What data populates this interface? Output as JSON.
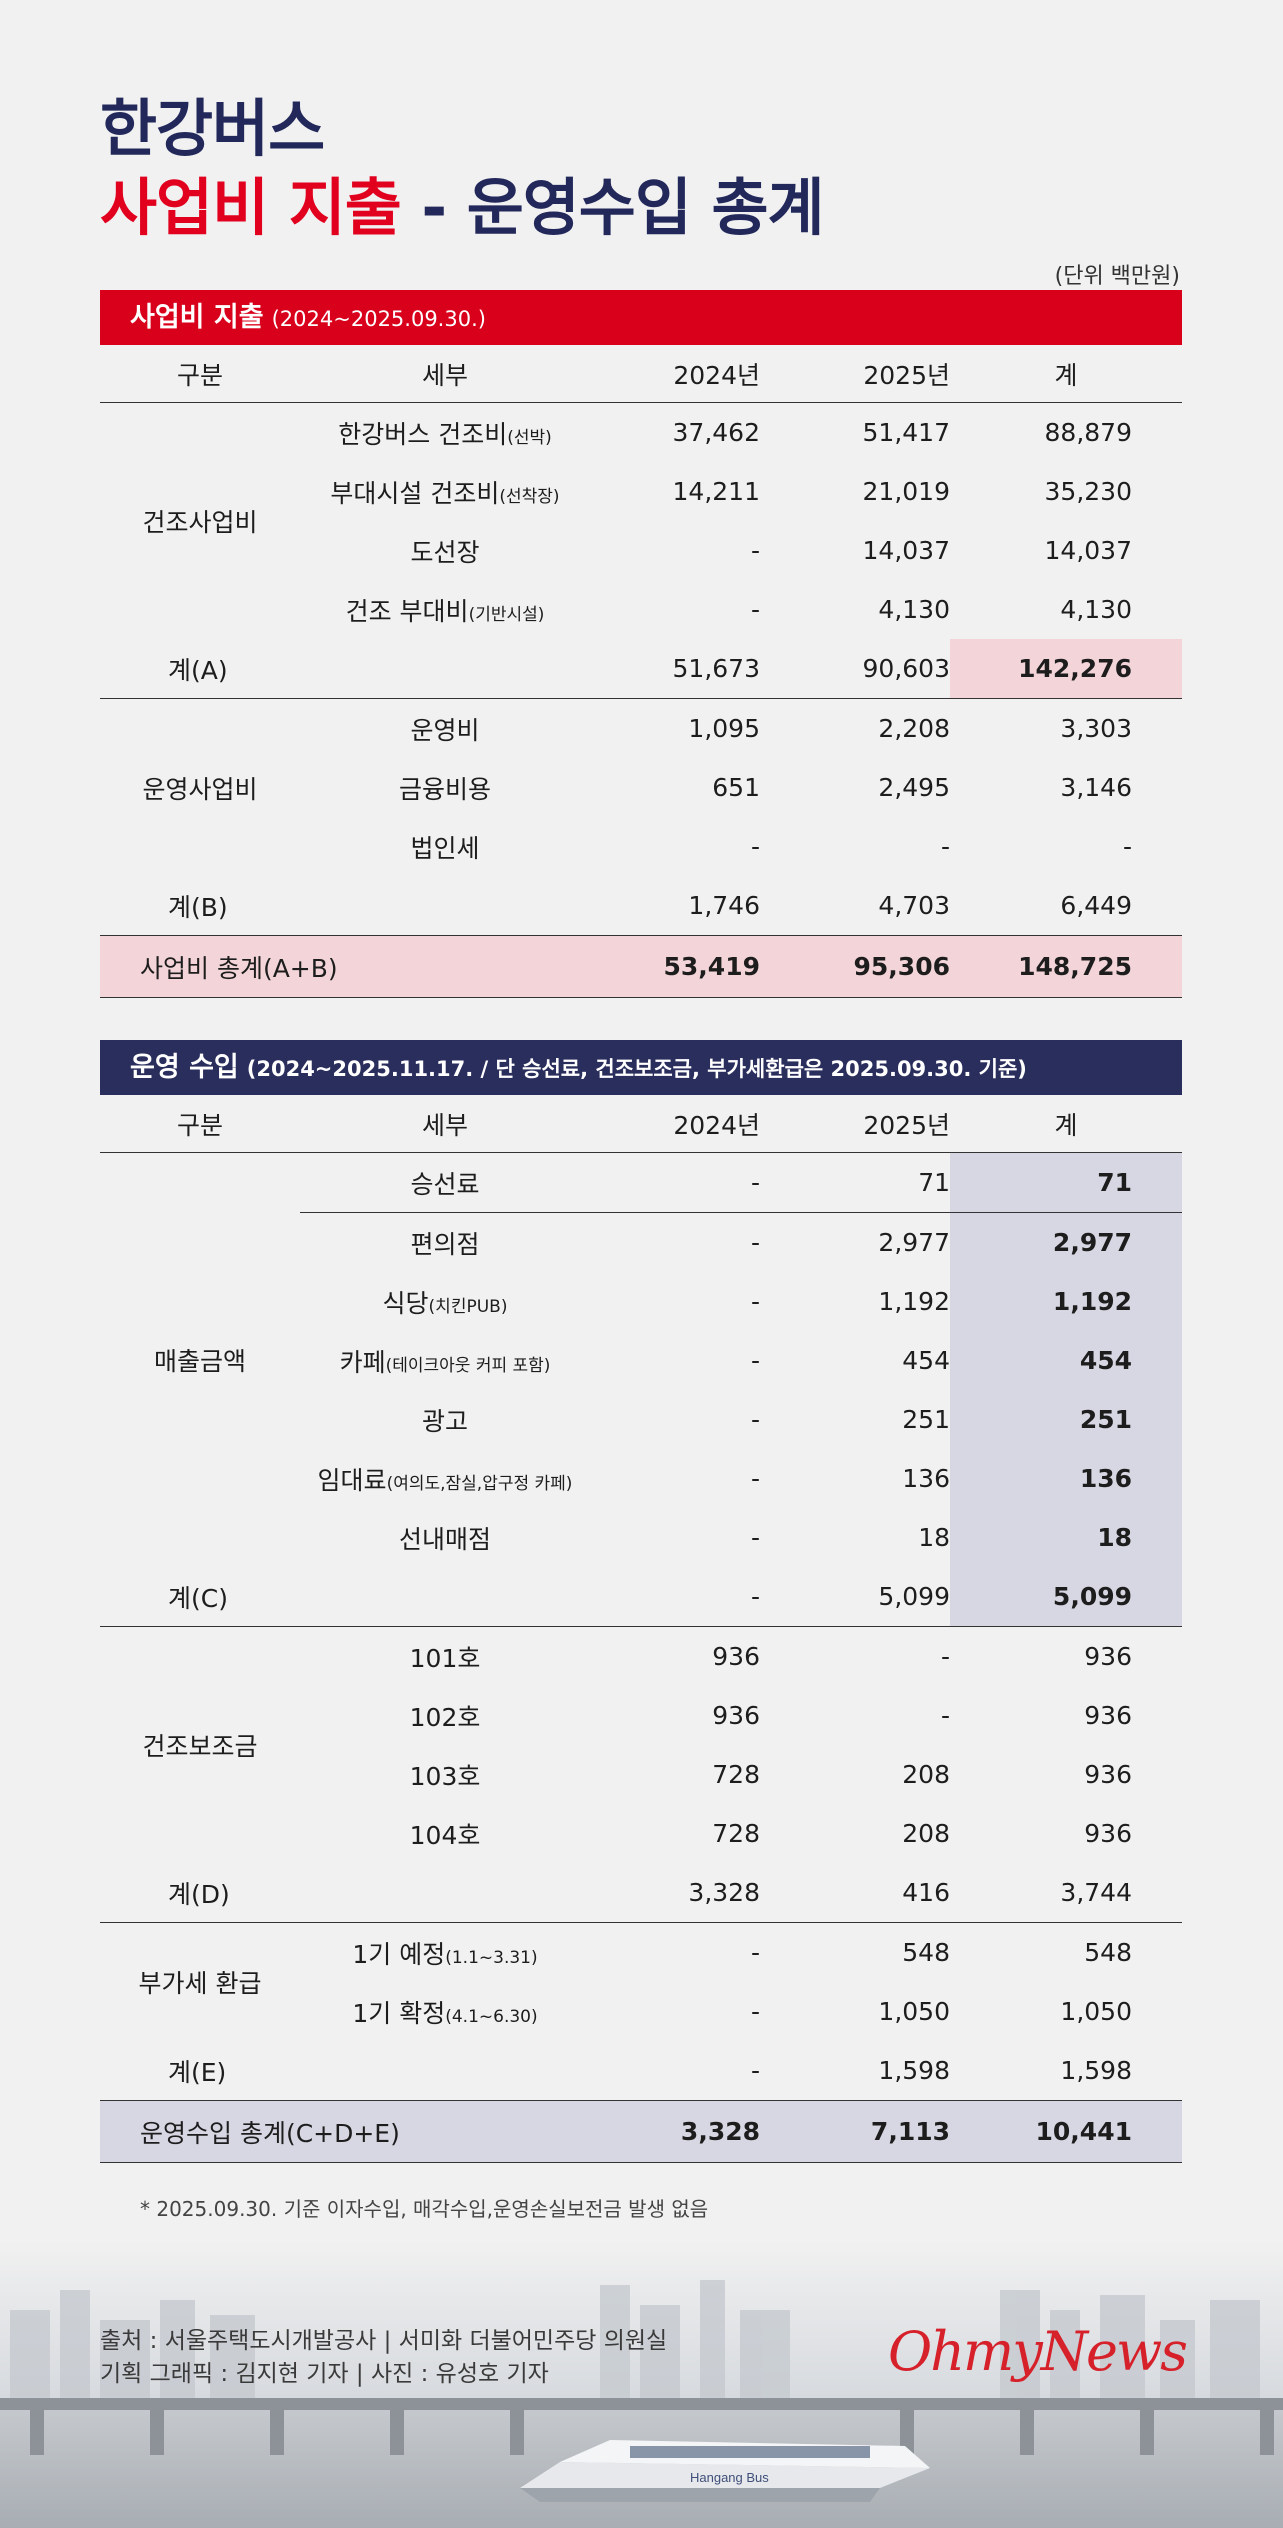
{
  "title": {
    "line1": "한강버스",
    "line2_red": "사업비 지출",
    "line2_dash": " - ",
    "line2_navy": "운영수입 총계"
  },
  "unit": "(단위 백만원)",
  "columns": {
    "cat": "구분",
    "det": "세부",
    "y1": "2024년",
    "y2": "2025년",
    "total": "계"
  },
  "expense": {
    "bar_title": "사업비 지출",
    "bar_period": "(2024~2025.09.30.)",
    "construction": {
      "label": "건조사업비",
      "rows": [
        {
          "name": "한강버스 건조비",
          "note": "(선박)",
          "y1": "37,462",
          "y2": "51,417",
          "total": "88,879"
        },
        {
          "name": "부대시설 건조비",
          "note": "(선착장)",
          "y1": "14,211",
          "y2": "21,019",
          "total": "35,230"
        },
        {
          "name": "도선장",
          "note": "",
          "y1": "-",
          "y2": "14,037",
          "total": "14,037"
        },
        {
          "name": "건조 부대비",
          "note": "(기반시설)",
          "y1": "-",
          "y2": "4,130",
          "total": "4,130"
        }
      ],
      "sum": {
        "label": "계(A)",
        "y1": "51,673",
        "y2": "90,603",
        "total": "142,276"
      }
    },
    "operation": {
      "label": "운영사업비",
      "rows": [
        {
          "name": "운영비",
          "y1": "1,095",
          "y2": "2,208",
          "total": "3,303"
        },
        {
          "name": "금융비용",
          "y1": "651",
          "y2": "2,495",
          "total": "3,146"
        },
        {
          "name": "법인세",
          "y1": "-",
          "y2": "-",
          "total": "-"
        }
      ],
      "sum": {
        "label": "계(B)",
        "y1": "1,746",
        "y2": "4,703",
        "total": "6,449"
      }
    },
    "grand": {
      "label": "사업비 총계(A+B)",
      "y1": "53,419",
      "y2": "95,306",
      "total": "148,725"
    }
  },
  "revenue": {
    "bar_title": "운영 수입",
    "bar_period": "(2024~2025.11.17. / 단 승선료, 건조보조금, 부가세환급은 2025.09.30. 기준)",
    "sales": {
      "label": "매출금액",
      "fare": {
        "name": "승선료",
        "y1": "-",
        "y2": "71",
        "total": "71"
      },
      "rows": [
        {
          "name": "편의점",
          "note": "",
          "y1": "-",
          "y2": "2,977",
          "total": "2,977"
        },
        {
          "name": "식당",
          "note": "(치킨PUB)",
          "y1": "-",
          "y2": "1,192",
          "total": "1,192"
        },
        {
          "name": "카페",
          "note": "(테이크아웃 커피 포함)",
          "y1": "-",
          "y2": "454",
          "total": "454"
        },
        {
          "name": "광고",
          "note": "",
          "y1": "-",
          "y2": "251",
          "total": "251"
        },
        {
          "name": "임대료",
          "note": "(여의도,잠실,압구정 카페)",
          "y1": "-",
          "y2": "136",
          "total": "136"
        },
        {
          "name": "선내매점",
          "note": "",
          "y1": "-",
          "y2": "18",
          "total": "18"
        }
      ],
      "sum": {
        "label": "계(C)",
        "y1": "-",
        "y2": "5,099",
        "total": "5,099"
      }
    },
    "subsidy": {
      "label": "건조보조금",
      "rows": [
        {
          "name": "101호",
          "y1": "936",
          "y2": "-",
          "total": "936"
        },
        {
          "name": "102호",
          "y1": "936",
          "y2": "-",
          "total": "936"
        },
        {
          "name": "103호",
          "y1": "728",
          "y2": "208",
          "total": "936"
        },
        {
          "name": "104호",
          "y1": "728",
          "y2": "208",
          "total": "936"
        }
      ],
      "sum": {
        "label": "계(D)",
        "y1": "3,328",
        "y2": "416",
        "total": "3,744"
      }
    },
    "vat": {
      "label": "부가세 환급",
      "rows": [
        {
          "name": "1기 예정",
          "note": "(1.1~3.31)",
          "y1": "-",
          "y2": "548",
          "total": "548"
        },
        {
          "name": "1기 확정",
          "note": "(4.1~6.30)",
          "y1": "-",
          "y2": "1,050",
          "total": "1,050"
        }
      ],
      "sum": {
        "label": "계(E)",
        "y1": "-",
        "y2": "1,598",
        "total": "1,598"
      }
    },
    "grand": {
      "label": "운영수입 총계(C+D+E)",
      "y1": "3,328",
      "y2": "7,113",
      "total": "10,441"
    }
  },
  "footnote": "* 2025.09.30. 기준 이자수입, 매각수입,운영손실보전금 발생 없음",
  "source_line1": "출처 : 서울주택도시개발공사 | 서미화 더불어민주당 의원실",
  "source_line2": "기획 그래픽 : 김지현 기자 | 사진 : 유성호 기자",
  "logo": "OhmyNews",
  "boat_label": "Hangang Bus"
}
